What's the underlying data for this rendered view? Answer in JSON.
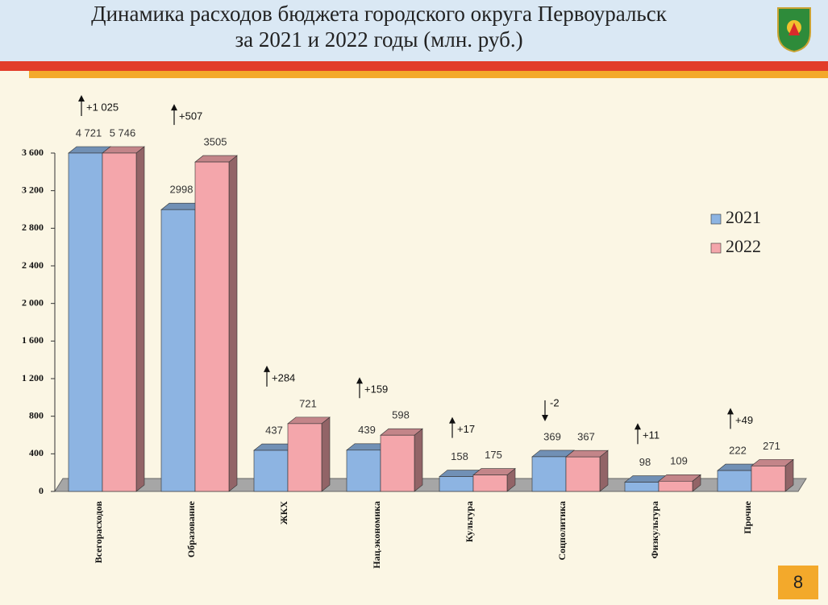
{
  "title": "Динамика расходов бюджета городского округа Первоуральск",
  "subtitle": "за 2021 и 2022 годы (млн. руб.)",
  "page_number": "8",
  "chart_data": {
    "type": "bar",
    "categories": [
      "Всегорасходов",
      "Образование",
      "ЖКХ",
      "Нац.экономика",
      "Культура",
      "Соцполитика",
      "Физкультура",
      "Прочие"
    ],
    "series": [
      {
        "name": "2021",
        "color": "#8db4e2",
        "values": [
          4721,
          2998,
          437,
          439,
          158,
          369,
          98,
          222
        ],
        "value_labels": [
          "4 721",
          "2998",
          "437",
          "439",
          "158",
          "369",
          "98",
          "222"
        ]
      },
      {
        "name": "2022",
        "color": "#f4a6ab",
        "values": [
          5746,
          3505,
          721,
          598,
          175,
          367,
          109,
          271
        ],
        "value_labels": [
          "5 746",
          "3505",
          "721",
          "598",
          "175",
          "367",
          "109",
          "271"
        ]
      }
    ],
    "changes": [
      1025,
      507,
      284,
      159,
      17,
      -2,
      11,
      49
    ],
    "change_labels": [
      "+1 025",
      "+507",
      "+284",
      "+159",
      "+17",
      "-2",
      "+11",
      "+49"
    ],
    "ylim": [
      0,
      3600
    ],
    "yticks": [
      0,
      400,
      800,
      {
        "value": 1200,
        "label": "1 200"
      },
      {
        "value": 1600,
        "label": "1 600"
      },
      {
        "value": 2000,
        "label": "2 000"
      },
      {
        "value": 2400,
        "label": "2 400"
      },
      {
        "value": 2800,
        "label": "2 800"
      },
      {
        "value": 3200,
        "label": "3 200"
      },
      {
        "value": 3600,
        "label": "3 600"
      }
    ],
    "legend": "right"
  }
}
